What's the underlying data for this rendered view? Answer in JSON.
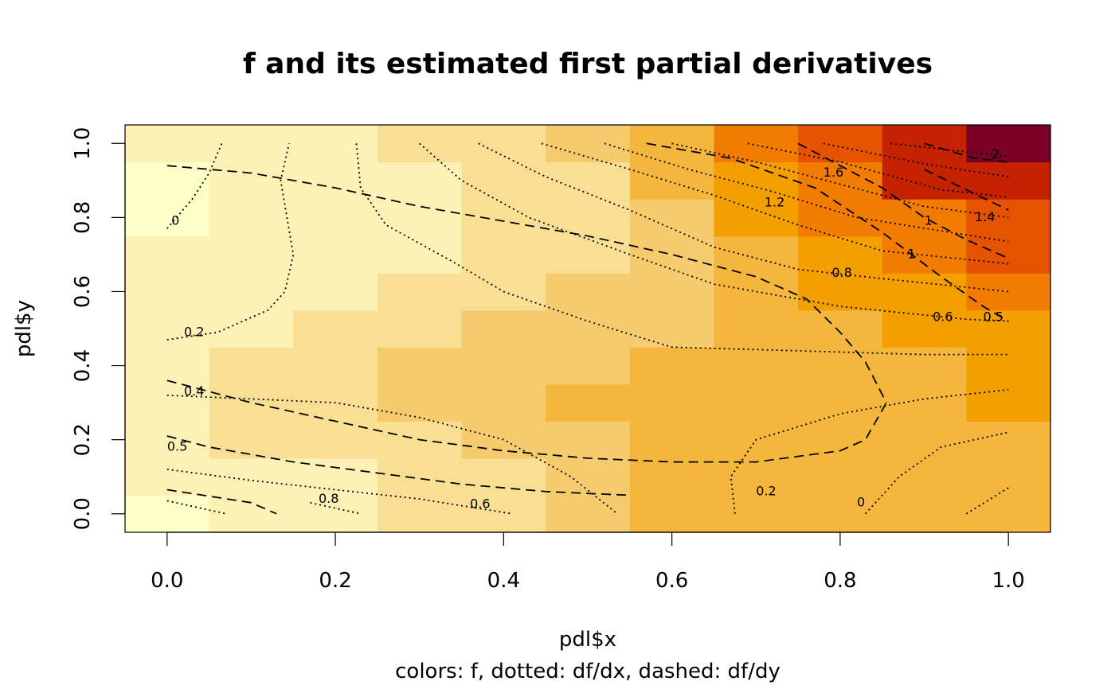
{
  "chart_data": {
    "type": "heatmap",
    "title": "f and its estimated first partial derivatives",
    "xlabel": "pdl$x",
    "ylabel": "pdl$y",
    "subtitle": "colors: f, dotted: df/dx, dashed: df/dy",
    "xlim": [
      -0.05,
      1.05
    ],
    "ylim": [
      -0.05,
      1.05
    ],
    "x_ticks": [
      "0.0",
      "0.2",
      "0.4",
      "0.6",
      "0.8",
      "1.0"
    ],
    "y_ticks": [
      "0.0",
      "0.2",
      "0.4",
      "0.6",
      "0.8",
      "1.0"
    ],
    "x_tick_values": [
      0,
      0.2,
      0.4,
      0.6,
      0.8,
      1.0
    ],
    "y_tick_values": [
      0,
      0.2,
      0.4,
      0.6,
      0.8,
      1.0
    ],
    "grid": {
      "x": [
        0.0,
        0.1,
        0.2,
        0.3,
        0.4,
        0.5,
        0.6,
        0.7,
        0.8,
        0.9,
        1.0
      ],
      "y": [
        0.0,
        0.1,
        0.2,
        0.3,
        0.4,
        0.5,
        0.6,
        0.7,
        0.8,
        0.9,
        1.0
      ],
      "palette": [
        "#FFFFC8",
        "#FDF2B6",
        "#F9DF94",
        "#F5CB6E",
        "#F5B63E",
        "#F59E00",
        "#F17C00",
        "#E65300",
        "#C42200",
        "#7A0027"
      ],
      "levels": [
        [
          0,
          1,
          1,
          2,
          2,
          3,
          4,
          4,
          4,
          4,
          4
        ],
        [
          1,
          1,
          1,
          2,
          2,
          3,
          4,
          4,
          4,
          4,
          4
        ],
        [
          1,
          2,
          2,
          2,
          3,
          3,
          4,
          4,
          4,
          4,
          4
        ],
        [
          1,
          2,
          2,
          3,
          3,
          4,
          4,
          4,
          4,
          4,
          5
        ],
        [
          1,
          2,
          2,
          3,
          3,
          3,
          4,
          4,
          4,
          4,
          5
        ],
        [
          1,
          1,
          2,
          2,
          3,
          3,
          3,
          4,
          4,
          5,
          5
        ],
        [
          1,
          1,
          1,
          2,
          2,
          3,
          3,
          4,
          5,
          5,
          6
        ],
        [
          1,
          1,
          1,
          1,
          2,
          2,
          3,
          4,
          5,
          6,
          7
        ],
        [
          0,
          1,
          1,
          1,
          2,
          2,
          3,
          5,
          6,
          6,
          7
        ],
        [
          0,
          1,
          1,
          1,
          2,
          2,
          4,
          5,
          6,
          8,
          8
        ],
        [
          1,
          1,
          1,
          2,
          2,
          3,
          4,
          6,
          7,
          8,
          9
        ]
      ]
    },
    "contours": [
      {
        "type": "dotted",
        "variable": "df/dx",
        "label": "0",
        "label_at": [
          0.005,
          0.78
        ],
        "points": [
          [
            0.0,
            0.77
          ],
          [
            0.03,
            0.85
          ],
          [
            0.05,
            0.92
          ],
          [
            0.065,
            1.0
          ]
        ]
      },
      {
        "type": "dotted",
        "variable": "df/dx",
        "label": "0.2",
        "label_at": [
          0.02,
          0.48
        ],
        "points": [
          [
            0.0,
            0.47
          ],
          [
            0.06,
            0.49
          ],
          [
            0.12,
            0.55
          ],
          [
            0.14,
            0.6
          ],
          [
            0.15,
            0.7
          ],
          [
            0.135,
            0.9
          ],
          [
            0.145,
            1.0
          ]
        ]
      },
      {
        "type": "dotted",
        "variable": "df/dx",
        "label": "0.4",
        "label_at": [
          0.02,
          0.32
        ],
        "points": [
          [
            0.0,
            0.32
          ],
          [
            0.1,
            0.31
          ],
          [
            0.2,
            0.3
          ],
          [
            0.3,
            0.26
          ],
          [
            0.4,
            0.2
          ],
          [
            0.48,
            0.1
          ],
          [
            0.535,
            0.0
          ]
        ]
      },
      {
        "type": "dotted",
        "variable": "df/dx",
        "label": "0.6",
        "label_at": [
          0.36,
          0.015
        ],
        "points": [
          [
            0.0,
            0.12
          ],
          [
            0.1,
            0.09
          ],
          [
            0.2,
            0.065
          ],
          [
            0.3,
            0.04
          ],
          [
            0.41,
            0.0
          ]
        ]
      },
      {
        "type": "dotted",
        "variable": "df/dx",
        "label": "0.8",
        "label_at": [
          0.18,
          0.03
        ],
        "points": [
          [
            0.0,
            0.035
          ],
          [
            0.07,
            0.0
          ]
        ]
      },
      {
        "type": "dotted",
        "variable": "df/dx",
        "label": "",
        "points": [
          [
            0.17,
            0.03
          ],
          [
            0.23,
            0.0
          ]
        ]
      },
      {
        "type": "dotted",
        "variable": "df/dx",
        "label": "",
        "points": [
          [
            0.225,
            1.0
          ],
          [
            0.23,
            0.88
          ],
          [
            0.26,
            0.78
          ],
          [
            0.34,
            0.68
          ],
          [
            0.4,
            0.6
          ],
          [
            0.5,
            0.52
          ],
          [
            0.6,
            0.45
          ],
          [
            0.75,
            0.44
          ],
          [
            0.9,
            0.43
          ],
          [
            1.0,
            0.43
          ]
        ]
      },
      {
        "type": "dotted",
        "variable": "df/dx",
        "label": "0.6",
        "label_at": [
          0.91,
          0.52
        ],
        "points": [
          [
            0.3,
            1.0
          ],
          [
            0.35,
            0.9
          ],
          [
            0.43,
            0.8
          ],
          [
            0.55,
            0.7
          ],
          [
            0.65,
            0.62
          ],
          [
            0.8,
            0.56
          ],
          [
            0.95,
            0.525
          ],
          [
            1.0,
            0.52
          ]
        ]
      },
      {
        "type": "dotted",
        "variable": "df/dx",
        "label": "0.8",
        "label_at": [
          0.79,
          0.64
        ],
        "points": [
          [
            0.37,
            1.0
          ],
          [
            0.45,
            0.91
          ],
          [
            0.55,
            0.82
          ],
          [
            0.65,
            0.72
          ],
          [
            0.75,
            0.66
          ],
          [
            0.85,
            0.635
          ],
          [
            1.0,
            0.6
          ]
        ]
      },
      {
        "type": "dotted",
        "variable": "df/dx",
        "label": "1",
        "label_at": [
          0.88,
          0.69
        ],
        "points": [
          [
            0.445,
            1.0
          ],
          [
            0.55,
            0.93
          ],
          [
            0.65,
            0.86
          ],
          [
            0.75,
            0.78
          ],
          [
            0.85,
            0.71
          ],
          [
            1.0,
            0.675
          ]
        ]
      },
      {
        "type": "dotted",
        "variable": "df/dx",
        "label": "1.2",
        "label_at": [
          0.71,
          0.83
        ],
        "points": [
          [
            0.52,
            1.0
          ],
          [
            0.62,
            0.93
          ],
          [
            0.72,
            0.87
          ],
          [
            0.82,
            0.8
          ],
          [
            1.0,
            0.735
          ]
        ]
      },
      {
        "type": "dotted",
        "variable": "df/dx",
        "label": "1.4",
        "label_at": [
          0.96,
          0.79
        ],
        "points": [
          [
            0.6,
            1.0
          ],
          [
            0.7,
            0.95
          ],
          [
            0.8,
            0.89
          ],
          [
            0.9,
            0.83
          ],
          [
            1.0,
            0.8
          ]
        ]
      },
      {
        "type": "dotted",
        "variable": "df/dx",
        "label": "1.6",
        "label_at": [
          0.78,
          0.91
        ],
        "points": [
          [
            0.69,
            1.0
          ],
          [
            0.8,
            0.95
          ],
          [
            0.92,
            0.875
          ],
          [
            1.0,
            0.855
          ]
        ]
      },
      {
        "type": "dotted",
        "variable": "df/dx",
        "label": "",
        "points": [
          [
            0.78,
            1.0
          ],
          [
            0.9,
            0.945
          ],
          [
            1.0,
            0.91
          ]
        ]
      },
      {
        "type": "dotted",
        "variable": "df/dx",
        "label": "",
        "points": [
          [
            0.86,
            1.0
          ],
          [
            0.94,
            0.98
          ],
          [
            1.0,
            0.965
          ]
        ]
      },
      {
        "type": "dotted",
        "variable": "df/dx",
        "label": "0.2",
        "label_at": [
          0.7,
          0.05
        ],
        "points": [
          [
            0.675,
            0.0
          ],
          [
            0.67,
            0.1
          ],
          [
            0.7,
            0.2
          ],
          [
            0.8,
            0.27
          ],
          [
            0.9,
            0.31
          ],
          [
            1.0,
            0.335
          ]
        ]
      },
      {
        "type": "dotted",
        "variable": "df/dx",
        "label": "0",
        "label_at": [
          0.82,
          0.02
        ],
        "points": [
          [
            0.83,
            0.0
          ],
          [
            0.87,
            0.1
          ],
          [
            0.92,
            0.18
          ],
          [
            1.0,
            0.22
          ]
        ]
      },
      {
        "type": "dotted",
        "variable": "df/dx",
        "label": "",
        "points": [
          [
            0.95,
            0.0
          ],
          [
            1.0,
            0.07
          ]
        ]
      },
      {
        "type": "dashed",
        "variable": "df/dy",
        "label": "",
        "points": [
          [
            0.0,
            0.94
          ],
          [
            0.1,
            0.92
          ],
          [
            0.2,
            0.88
          ],
          [
            0.3,
            0.83
          ],
          [
            0.4,
            0.79
          ],
          [
            0.5,
            0.75
          ],
          [
            0.6,
            0.7
          ],
          [
            0.7,
            0.64
          ],
          [
            0.76,
            0.58
          ],
          [
            0.8,
            0.49
          ],
          [
            0.83,
            0.41
          ],
          [
            0.855,
            0.3
          ]
        ]
      },
      {
        "type": "dashed",
        "variable": "df/dy",
        "label": "",
        "points": [
          [
            0.0,
            0.36
          ],
          [
            0.1,
            0.3
          ],
          [
            0.2,
            0.25
          ],
          [
            0.3,
            0.2
          ],
          [
            0.4,
            0.17
          ],
          [
            0.5,
            0.15
          ],
          [
            0.6,
            0.14
          ],
          [
            0.7,
            0.14
          ],
          [
            0.8,
            0.17
          ],
          [
            0.83,
            0.2
          ],
          [
            0.855,
            0.3
          ]
        ]
      },
      {
        "type": "dashed",
        "variable": "df/dy",
        "label": "0.5",
        "label_at": [
          0.0,
          0.17
        ],
        "points": [
          [
            0.0,
            0.21
          ],
          [
            0.05,
            0.18
          ],
          [
            0.15,
            0.14
          ],
          [
            0.25,
            0.11
          ],
          [
            0.35,
            0.08
          ],
          [
            0.45,
            0.06
          ],
          [
            0.55,
            0.05
          ]
        ]
      },
      {
        "type": "dashed",
        "variable": "df/dy",
        "label": "",
        "points": [
          [
            0.0,
            0.065
          ],
          [
            0.1,
            0.03
          ],
          [
            0.13,
            0.0
          ]
        ]
      },
      {
        "type": "dashed",
        "variable": "df/dy",
        "label": "0.5",
        "label_at": [
          0.97,
          0.52
        ],
        "points": [
          [
            0.57,
            1.0
          ],
          [
            0.67,
            0.96
          ],
          [
            0.77,
            0.88
          ],
          [
            0.85,
            0.76
          ],
          [
            0.92,
            0.64
          ],
          [
            0.97,
            0.56
          ],
          [
            1.0,
            0.52
          ]
        ]
      },
      {
        "type": "dashed",
        "variable": "df/dy",
        "label": "1",
        "label_at": [
          0.9,
          0.78
        ],
        "points": [
          [
            0.75,
            1.0
          ],
          [
            0.85,
            0.88
          ],
          [
            0.9,
            0.8
          ],
          [
            0.95,
            0.74
          ],
          [
            1.0,
            0.69
          ]
        ]
      },
      {
        "type": "dashed",
        "variable": "df/dy",
        "label": "2",
        "label_at": [
          0.98,
          0.96
        ],
        "points": [
          [
            0.9,
            1.0
          ],
          [
            0.96,
            0.96
          ],
          [
            1.0,
            0.95
          ]
        ]
      },
      {
        "type": "dashed",
        "variable": "df/dy",
        "label": "",
        "points": [
          [
            0.9,
            0.93
          ],
          [
            1.0,
            0.82
          ]
        ]
      }
    ]
  }
}
